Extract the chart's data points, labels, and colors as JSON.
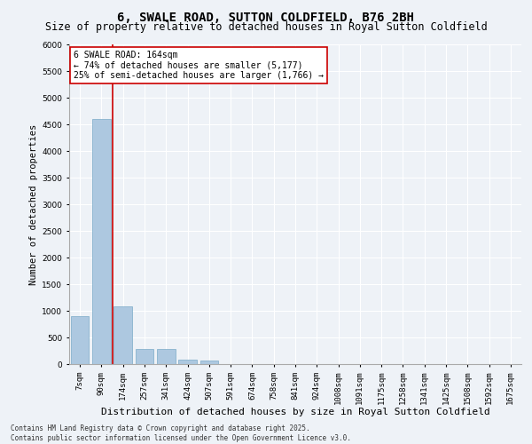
{
  "title": "6, SWALE ROAD, SUTTON COLDFIELD, B76 2BH",
  "subtitle": "Size of property relative to detached houses in Royal Sutton Coldfield",
  "xlabel": "Distribution of detached houses by size in Royal Sutton Coldfield",
  "ylabel": "Number of detached properties",
  "categories": [
    "7sqm",
    "90sqm",
    "174sqm",
    "257sqm",
    "341sqm",
    "424sqm",
    "507sqm",
    "591sqm",
    "674sqm",
    "758sqm",
    "841sqm",
    "924sqm",
    "1008sqm",
    "1091sqm",
    "1175sqm",
    "1258sqm",
    "1341sqm",
    "1425sqm",
    "1508sqm",
    "1592sqm",
    "1675sqm"
  ],
  "values": [
    900,
    4600,
    1080,
    290,
    290,
    90,
    70,
    0,
    0,
    0,
    0,
    0,
    0,
    0,
    0,
    0,
    0,
    0,
    0,
    0,
    0
  ],
  "bar_color": "#adc8e0",
  "bar_edge_color": "#7aaac8",
  "vline_color": "#cc0000",
  "vline_x_index": 1.5,
  "annotation_text": "6 SWALE ROAD: 164sqm\n← 74% of detached houses are smaller (5,177)\n25% of semi-detached houses are larger (1,766) →",
  "annotation_box_color": "#ffffff",
  "annotation_box_edge_color": "#cc0000",
  "ylim": [
    0,
    6000
  ],
  "yticks": [
    0,
    500,
    1000,
    1500,
    2000,
    2500,
    3000,
    3500,
    4000,
    4500,
    5000,
    5500,
    6000
  ],
  "background_color": "#eef2f7",
  "grid_color": "#ffffff",
  "footer_text": "Contains HM Land Registry data © Crown copyright and database right 2025.\nContains public sector information licensed under the Open Government Licence v3.0.",
  "title_fontsize": 10,
  "subtitle_fontsize": 8.5,
  "xlabel_fontsize": 8,
  "ylabel_fontsize": 7.5,
  "tick_fontsize": 6.5,
  "annotation_fontsize": 7,
  "footer_fontsize": 5.5
}
